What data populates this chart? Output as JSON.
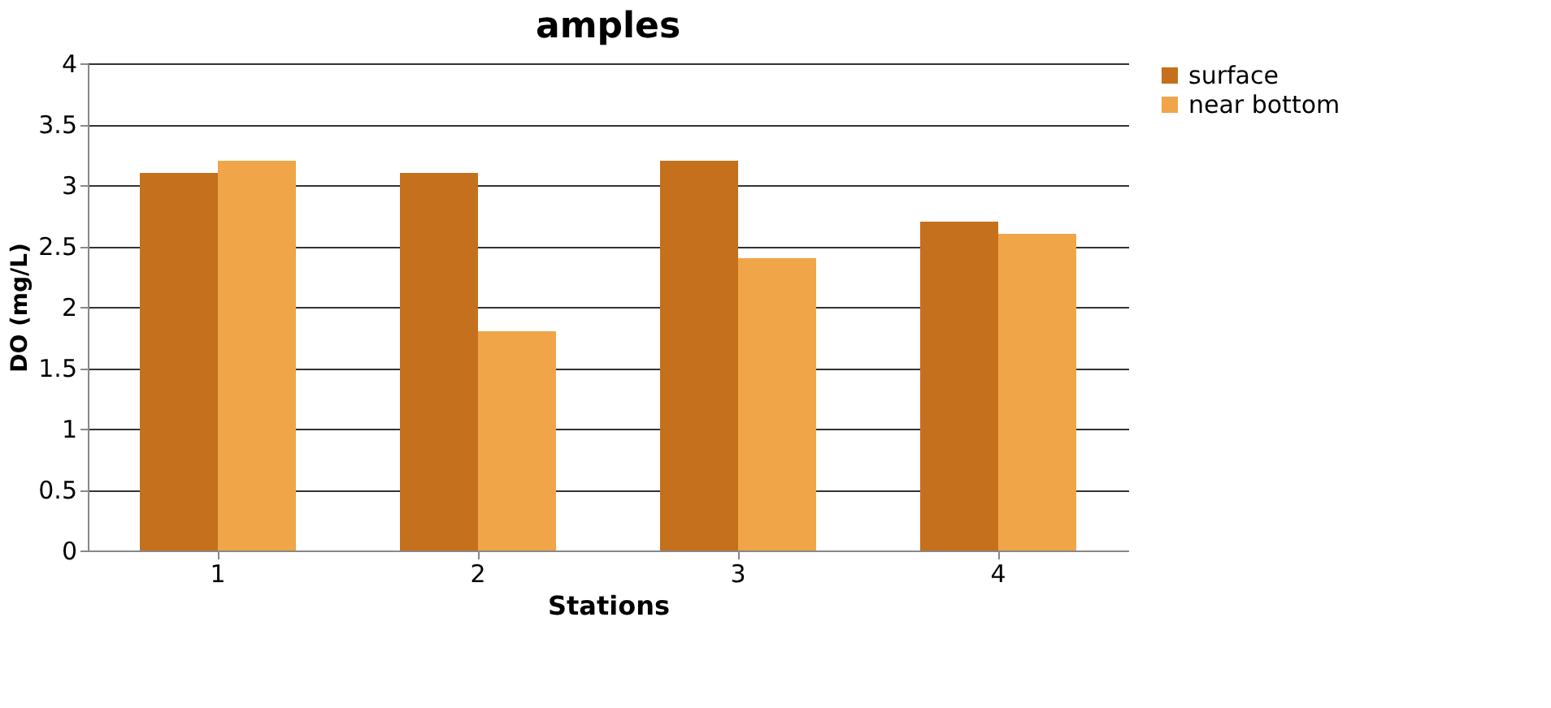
{
  "chart_data": {
    "type": "bar",
    "title": "amples",
    "xlabel": "Stations",
    "ylabel": "DO (mg/L)",
    "categories": [
      "1",
      "2",
      "3",
      "4"
    ],
    "series": [
      {
        "name": "surface",
        "color": "#c4701c",
        "values": [
          3.1,
          3.1,
          3.2,
          2.7
        ]
      },
      {
        "name": "near bottom",
        "color": "#f0a548",
        "values": [
          3.2,
          1.8,
          2.4,
          2.6
        ]
      }
    ],
    "ylim": [
      0,
      4
    ],
    "yticks": [
      0,
      0.5,
      1,
      1.5,
      2,
      2.5,
      3,
      3.5,
      4
    ],
    "grid": "y",
    "legend": "right"
  }
}
